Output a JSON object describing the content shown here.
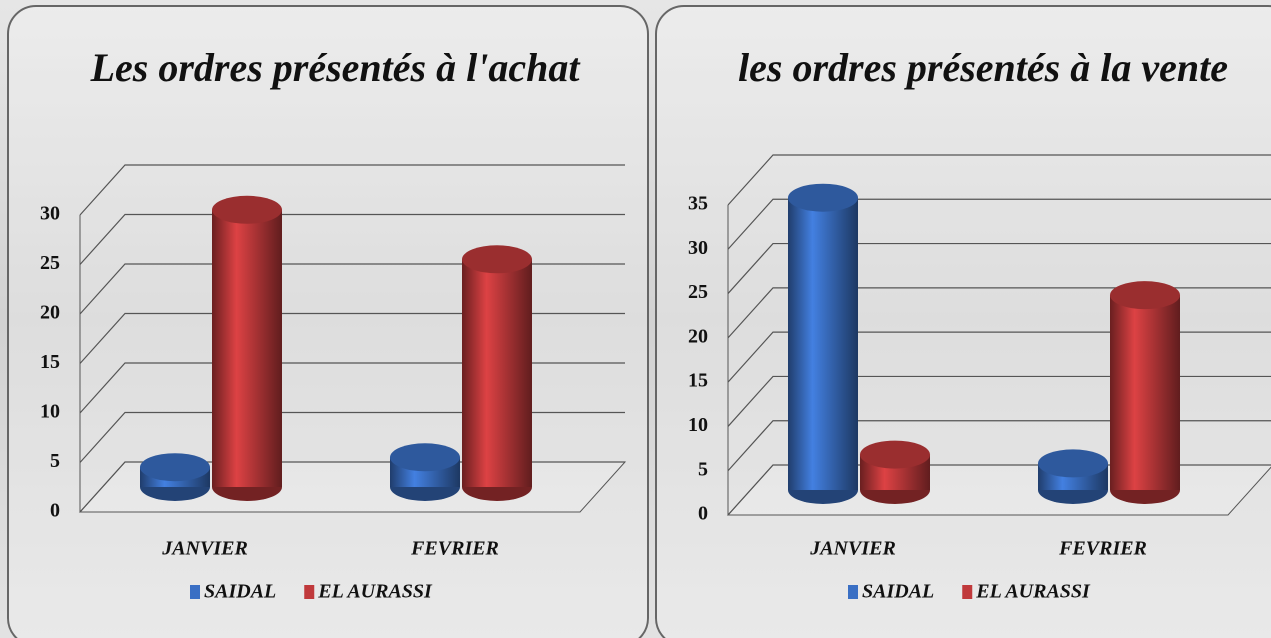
{
  "chart_data": [
    {
      "type": "bar3d",
      "title": "Les ordres présentés à l'achat",
      "categories": [
        "JANVIER",
        "FEVRIER"
      ],
      "series": [
        {
          "name": "SAIDAL",
          "color": "#3a6fc4",
          "values": [
            2,
            3
          ]
        },
        {
          "name": "EL AURASSI",
          "color": "#c0393b",
          "values": [
            28,
            23
          ]
        }
      ],
      "ylim": [
        0,
        30
      ],
      "yticks": [
        0,
        5,
        10,
        15,
        20,
        25,
        30
      ],
      "grid": true
    },
    {
      "type": "bar3d",
      "title": "les ordres présentés à la vente",
      "categories": [
        "JANVIER",
        "FEVRIER"
      ],
      "series": [
        {
          "name": "SAIDAL",
          "color": "#3a6fc4",
          "values": [
            33,
            3
          ]
        },
        {
          "name": "EL AURASSI",
          "color": "#c0393b",
          "values": [
            4,
            22
          ]
        }
      ],
      "ylim": [
        0,
        35
      ],
      "yticks": [
        0,
        5,
        10,
        15,
        20,
        25,
        30,
        35
      ],
      "grid": true
    }
  ]
}
